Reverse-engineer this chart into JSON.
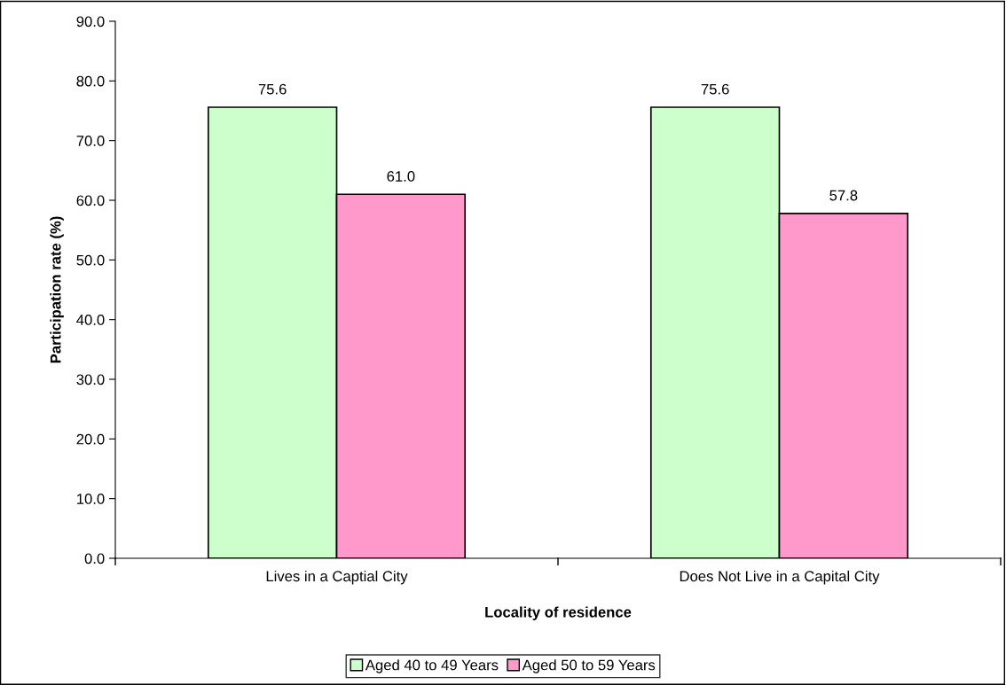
{
  "chart_data": {
    "type": "bar",
    "xlabel": "Locality of residence",
    "ylabel": "Participation rate (%)",
    "categories": [
      "Lives in a Captial City",
      "Does Not Live in a Capital City"
    ],
    "series": [
      {
        "name": "Aged 40 to 49 Years",
        "color": "#ccffcc",
        "values": [
          75.6,
          75.6
        ],
        "value_labels": [
          "75.6",
          "75.6"
        ]
      },
      {
        "name": "Aged 50 to 59 Years",
        "color": "#ff99cc",
        "values": [
          61.0,
          57.8
        ],
        "value_labels": [
          "61.0",
          "57.8"
        ]
      }
    ],
    "ylim": [
      0,
      90
    ],
    "yticks": [
      {
        "value": 0,
        "label": "0.0"
      },
      {
        "value": 10,
        "label": "10.0"
      },
      {
        "value": 20,
        "label": "20.0"
      },
      {
        "value": 30,
        "label": "30.0"
      },
      {
        "value": 40,
        "label": "40.0"
      },
      {
        "value": 50,
        "label": "50.0"
      },
      {
        "value": 60,
        "label": "60.0"
      },
      {
        "value": 70,
        "label": "70.0"
      },
      {
        "value": 80,
        "label": "80.0"
      },
      {
        "value": 90,
        "label": "90.0"
      }
    ],
    "legend": "bottom",
    "grid": false
  }
}
